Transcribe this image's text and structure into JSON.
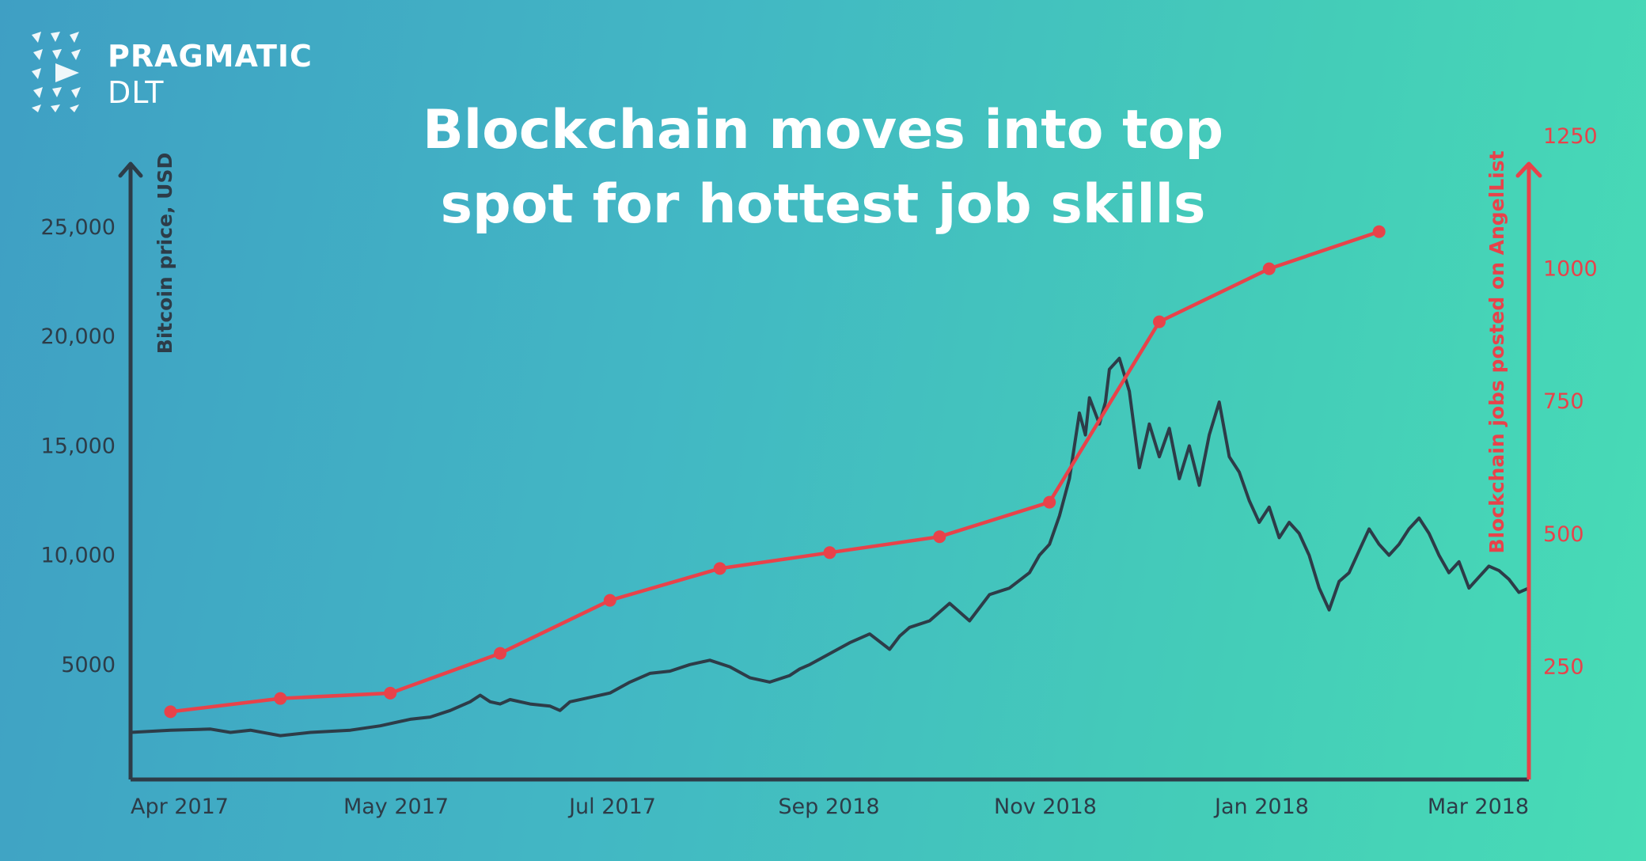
{
  "logo": {
    "line1": "PRAGMATIC",
    "line2": "DLT"
  },
  "colors": {
    "bitcoin": "#2d3c48",
    "jobs": "#e8424a",
    "title": "#ffffff"
  },
  "chart_data": {
    "type": "line",
    "title": "Blockchain moves into top spot for hottest job skills",
    "title_lines": [
      "Blockchain moves into top",
      "spot for hottest job skills"
    ],
    "x_ticks": [
      "Apr 2017",
      "May 2017",
      "Jul 2017",
      "Sep 2018",
      "Nov 2018",
      "Jan 2018",
      "Mar 2018"
    ],
    "y_left": {
      "label": "Bitcoin price, USD",
      "ticks": [
        "5000",
        "10,000",
        "15,000",
        "20,000",
        "25,000"
      ],
      "tick_values": [
        5000,
        10000,
        15000,
        20000,
        25000
      ],
      "range": [
        0,
        25000
      ]
    },
    "y_right": {
      "label": "Blockchain jobs posted on AngelList",
      "ticks": [
        "250",
        "500",
        "750",
        "1000",
        "1250"
      ],
      "tick_values": [
        250,
        500,
        750,
        1000,
        1250
      ],
      "range": [
        0,
        1250
      ]
    },
    "series": [
      {
        "name": "Bitcoin price, USD",
        "axis": "left",
        "x": [
          0,
          0.2,
          0.4,
          0.5,
          0.6,
          0.75,
          0.9,
          1.0,
          1.1,
          1.25,
          1.4,
          1.5,
          1.6,
          1.7,
          1.75,
          1.8,
          1.85,
          1.9,
          2.0,
          2.1,
          2.15,
          2.2,
          2.3,
          2.4,
          2.5,
          2.6,
          2.7,
          2.8,
          2.9,
          3.0,
          3.1,
          3.2,
          3.3,
          3.35,
          3.4,
          3.5,
          3.6,
          3.7,
          3.8,
          3.85,
          3.9,
          4.0,
          4.1,
          4.2,
          4.3,
          4.4,
          4.5,
          4.55,
          4.6,
          4.65,
          4.7,
          4.75,
          4.78,
          4.8,
          4.85,
          4.88,
          4.9,
          4.95,
          5.0,
          5.05,
          5.1,
          5.15,
          5.2,
          5.25,
          5.3,
          5.35,
          5.4,
          5.45,
          5.5,
          5.55,
          5.6,
          5.65,
          5.7,
          5.75,
          5.8,
          5.85,
          5.9,
          5.95,
          6.0,
          6.05,
          6.1,
          6.15,
          6.2,
          6.25,
          6.3,
          6.35,
          6.4,
          6.45,
          6.5,
          6.55,
          6.6,
          6.65,
          6.7,
          6.75,
          6.8,
          6.85,
          6.9,
          6.95,
          7.0
        ],
        "values": [
          1900,
          2000,
          2050,
          1900,
          2000,
          1750,
          1900,
          1950,
          2000,
          2200,
          2500,
          2600,
          2900,
          3300,
          3600,
          3300,
          3200,
          3400,
          3200,
          3100,
          2900,
          3300,
          3500,
          3700,
          4200,
          4600,
          4700,
          5000,
          5200,
          4900,
          4400,
          4200,
          4500,
          4800,
          5000,
          5500,
          6000,
          6400,
          5700,
          6300,
          6700,
          7000,
          7800,
          7000,
          8200,
          8500,
          9200,
          10000,
          10500,
          11800,
          13500,
          16500,
          15500,
          17200,
          16000,
          17000,
          18500,
          19000,
          17500,
          14000,
          16000,
          14500,
          15800,
          13500,
          15000,
          13200,
          15500,
          17000,
          14500,
          13800,
          12500,
          11500,
          12200,
          10800,
          11500,
          11000,
          10000,
          8500,
          7500,
          8800,
          9200,
          10200,
          11200,
          10500,
          10000,
          10500,
          11200,
          11700,
          11000,
          10000,
          9200,
          9700,
          8500,
          9000,
          9500,
          9300,
          8900,
          8300,
          8500
        ]
      },
      {
        "name": "Blockchain jobs posted on AngelList",
        "axis": "right",
        "x": [
          0.2,
          0.75,
          1.3,
          1.85,
          2.4,
          2.95,
          3.5,
          4.05,
          4.6,
          5.15,
          5.7,
          6.25
        ],
        "values": [
          165,
          190,
          200,
          275,
          375,
          435,
          465,
          495,
          560,
          900,
          1000,
          1070
        ]
      }
    ]
  }
}
